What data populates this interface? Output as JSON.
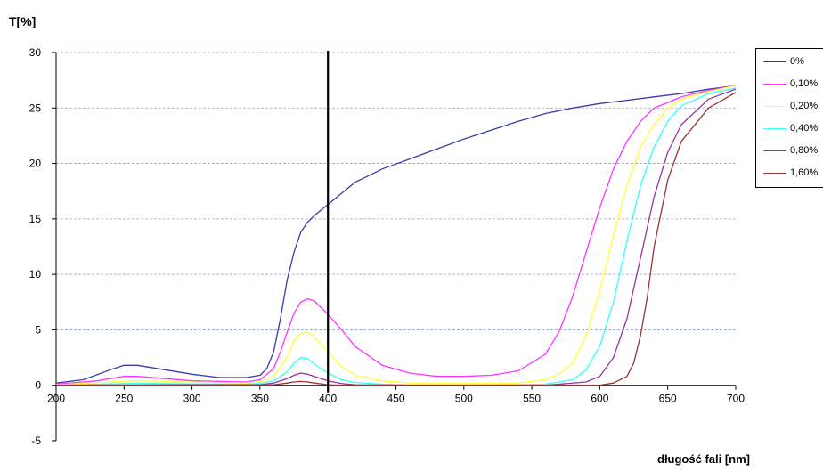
{
  "chart_data": {
    "type": "line",
    "title": "",
    "ylabel": "T[%]",
    "xlabel": "długość fali [nm]",
    "xlim": [
      200,
      700
    ],
    "ylim": [
      -5,
      30
    ],
    "xticks": [
      "200",
      "250",
      "300",
      "350",
      "400",
      "450",
      "500",
      "550",
      "600",
      "650",
      "700"
    ],
    "yticks": [
      "30",
      "25",
      "20",
      "15",
      "10",
      "5",
      "0",
      "-5"
    ],
    "grid": "horizontal dashed",
    "legend_position": "right",
    "vertical_marker_x": 400,
    "series": [
      {
        "name": "0%",
        "color": "#3b3ba8",
        "x": [
          200,
          220,
          240,
          250,
          260,
          280,
          300,
          320,
          340,
          350,
          355,
          360,
          365,
          370,
          375,
          380,
          385,
          390,
          400,
          420,
          440,
          460,
          480,
          500,
          520,
          540,
          560,
          580,
          600,
          620,
          640,
          660,
          680,
          700
        ],
        "y": [
          0.2,
          0.5,
          1.4,
          1.8,
          1.8,
          1.4,
          1.0,
          0.7,
          0.7,
          0.9,
          1.5,
          3.0,
          6.0,
          9.5,
          12.0,
          13.8,
          14.7,
          15.3,
          16.3,
          18.3,
          19.5,
          20.4,
          21.3,
          22.2,
          23.0,
          23.8,
          24.5,
          25.0,
          25.4,
          25.7,
          26.0,
          26.3,
          26.7,
          27.0
        ]
      },
      {
        "name": "0,10%",
        "color": "#ff33ff",
        "x": [
          200,
          230,
          250,
          260,
          280,
          300,
          340,
          350,
          360,
          365,
          370,
          375,
          380,
          385,
          390,
          400,
          410,
          420,
          440,
          460,
          480,
          500,
          520,
          540,
          560,
          570,
          580,
          590,
          600,
          610,
          620,
          630,
          640,
          660,
          680,
          700
        ],
        "y": [
          0.1,
          0.4,
          0.8,
          0.8,
          0.6,
          0.4,
          0.3,
          0.5,
          1.5,
          3.0,
          4.8,
          6.5,
          7.5,
          7.8,
          7.6,
          6.4,
          5.0,
          3.5,
          1.8,
          1.1,
          0.8,
          0.8,
          0.9,
          1.3,
          2.8,
          4.8,
          8.0,
          12.0,
          16.0,
          19.5,
          22.0,
          23.8,
          25.0,
          26.0,
          26.6,
          27.0
        ]
      },
      {
        "name": "0,20%",
        "color": "#ffff33",
        "x": [
          200,
          240,
          260,
          300,
          340,
          350,
          360,
          370,
          375,
          380,
          385,
          390,
          400,
          410,
          420,
          440,
          460,
          500,
          540,
          560,
          570,
          580,
          590,
          600,
          610,
          620,
          630,
          640,
          650,
          660,
          680,
          700
        ],
        "y": [
          0.05,
          0.3,
          0.4,
          0.3,
          0.2,
          0.3,
          0.8,
          2.5,
          4.0,
          4.7,
          4.8,
          4.3,
          3.0,
          1.7,
          0.9,
          0.4,
          0.2,
          0.15,
          0.2,
          0.5,
          1.0,
          2.0,
          4.5,
          8.5,
          13.5,
          18.0,
          21.5,
          23.5,
          25.0,
          25.8,
          26.5,
          27.0
        ]
      },
      {
        "name": "0,40%",
        "color": "#33ffff",
        "x": [
          200,
          240,
          260,
          300,
          340,
          350,
          360,
          370,
          375,
          380,
          385,
          390,
          400,
          410,
          420,
          440,
          460,
          500,
          560,
          580,
          590,
          600,
          610,
          620,
          630,
          640,
          650,
          660,
          680,
          700
        ],
        "y": [
          0.02,
          0.12,
          0.18,
          0.12,
          0.1,
          0.15,
          0.4,
          1.2,
          2.0,
          2.5,
          2.4,
          1.9,
          1.1,
          0.5,
          0.25,
          0.1,
          0.05,
          0.03,
          0.1,
          0.5,
          1.4,
          3.5,
          7.5,
          13.0,
          18.0,
          21.5,
          23.8,
          25.2,
          26.3,
          26.8
        ]
      },
      {
        "name": "0,80%",
        "color": "#993399",
        "x": [
          200,
          300,
          350,
          360,
          370,
          375,
          380,
          385,
          390,
          400,
          410,
          420,
          460,
          560,
          590,
          600,
          610,
          620,
          630,
          640,
          650,
          660,
          680,
          700
        ],
        "y": [
          0.0,
          0.05,
          0.05,
          0.2,
          0.6,
          0.9,
          1.1,
          1.0,
          0.8,
          0.4,
          0.15,
          0.05,
          0.0,
          0.0,
          0.3,
          0.8,
          2.5,
          6.0,
          11.5,
          17.0,
          21.0,
          23.5,
          25.8,
          26.7
        ]
      },
      {
        "name": "1,60%",
        "color": "#993333",
        "x": [
          200,
          350,
          360,
          370,
          375,
          380,
          385,
          390,
          400,
          410,
          600,
          610,
          620,
          625,
          630,
          635,
          640,
          650,
          660,
          680,
          700
        ],
        "y": [
          0.0,
          0.0,
          0.05,
          0.2,
          0.3,
          0.35,
          0.3,
          0.2,
          0.05,
          0.0,
          0.0,
          0.2,
          0.8,
          2.0,
          4.5,
          8.0,
          12.5,
          18.5,
          22.0,
          25.0,
          26.4
        ]
      }
    ]
  }
}
